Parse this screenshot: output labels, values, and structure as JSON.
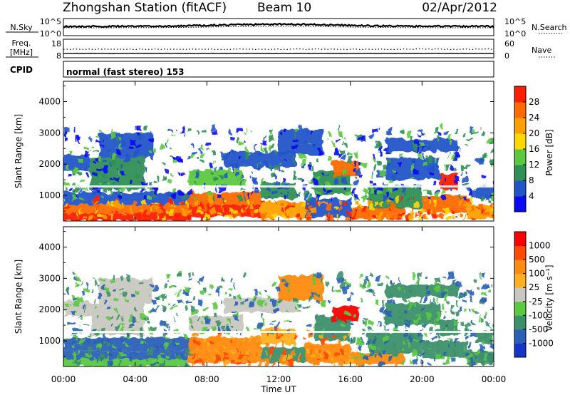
{
  "header": {
    "station": "Zhongshan Station (fitACF)",
    "beam": "Beam 10",
    "date": "02/Apr/2012"
  },
  "top_panel": {
    "left_label": "N.Sky",
    "left_ticks": [
      "10^5",
      "10^0"
    ],
    "right_ticks": [
      "10^5",
      "10^0"
    ],
    "right_label": "N.Search"
  },
  "freq_panel": {
    "label_line1": "Freq.",
    "label_line2": "[MHz]",
    "left_ticks": [
      "18",
      "8"
    ],
    "right_ticks": [
      "60",
      "0"
    ],
    "right_label": "Nave"
  },
  "cpid": {
    "label": "CPID",
    "mode": "normal (fast stereo) 153"
  },
  "chart_data": [
    {
      "type": "heatmap",
      "name": "power",
      "ylabel": "Slant Range [km]",
      "yticks": [
        1000,
        2000,
        3000,
        4000
      ],
      "ylim": [
        180,
        4650
      ],
      "xlim_hours": [
        0,
        24
      ],
      "colorbar": {
        "label": "Power [dB]",
        "ticks": [
          "4",
          "8",
          "12",
          "16",
          "20",
          "24",
          "28"
        ],
        "colors": [
          "#0a0af5",
          "#2455c8",
          "#2f8f55",
          "#5cc840",
          "#ffd800",
          "#ffa000",
          "#ff6a00",
          "#ff1e00"
        ]
      }
    },
    {
      "type": "heatmap",
      "name": "velocity",
      "ylabel": "Slant Range [km]",
      "yticks": [
        1000,
        2000,
        3000,
        4000
      ],
      "ylim": [
        180,
        4650
      ],
      "xlim_hours": [
        0,
        24
      ],
      "colorbar": {
        "label": "Velocity [m s⁻¹]",
        "ticks": [
          "1000",
          "500",
          "100",
          "25",
          "-25",
          "-100",
          "-500",
          "-1000"
        ],
        "colors": [
          "#1535c8",
          "#2a5fb8",
          "#3d8f6b",
          "#5ac840",
          "#c8c8c0",
          "#ffb020",
          "#ff8a10",
          "#ff4a00",
          "#ff0000"
        ]
      }
    }
  ],
  "xaxis": {
    "ticks": [
      "00:00",
      "04:00",
      "08:00",
      "12:00",
      "16:00",
      "20:00",
      "00:00"
    ],
    "label": "Time UT"
  }
}
